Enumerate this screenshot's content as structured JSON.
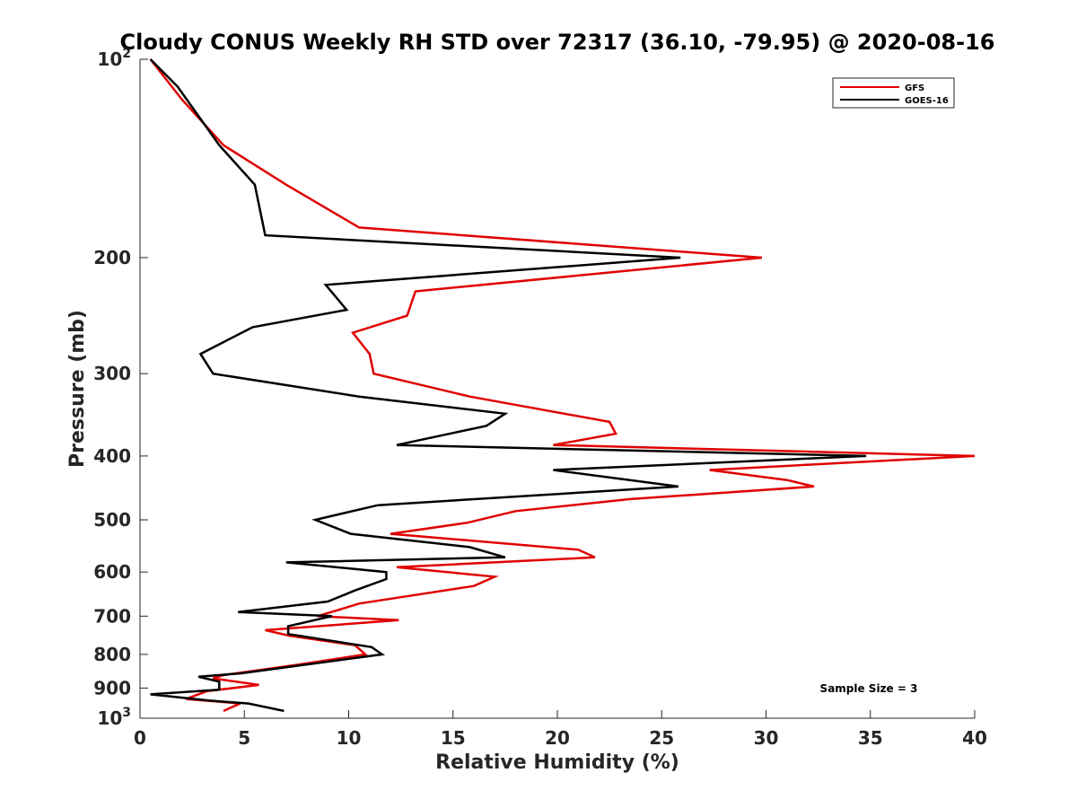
{
  "chart_data": {
    "type": "line",
    "title": "Cloudy CONUS Weekly RH STD over 72317 (36.10, -79.95) @ 2020-08-16",
    "xlabel": "Relative Humidity (%)",
    "ylabel": "Pressure (mb)",
    "xlim": [
      0,
      40
    ],
    "ylim": [
      100,
      1000
    ],
    "yscale": "log",
    "y_reversed": true,
    "grid": false,
    "legend_position": "top-right",
    "x_ticks": [
      0,
      5,
      10,
      15,
      20,
      25,
      30,
      35,
      40
    ],
    "x_tick_labels": [
      "0",
      "5",
      "10",
      "15",
      "20",
      "25",
      "30",
      "35",
      "40"
    ],
    "y_ticks": [
      200,
      300,
      400,
      500,
      600,
      700,
      800,
      900
    ],
    "y_tick_labels": [
      "200",
      "300",
      "400",
      "500",
      "600",
      "700",
      "800",
      "900"
    ],
    "y_log_ticks": [
      {
        "value": 100,
        "base": "10",
        "exp": "2"
      },
      {
        "value": 1000,
        "base": "10",
        "exp": "3"
      }
    ],
    "annotation": "Sample Size = 3",
    "series": [
      {
        "name": "GFS",
        "color": "#e00000",
        "points": [
          [
            0.5,
            100
          ],
          [
            2,
            115
          ],
          [
            4,
            135
          ],
          [
            7,
            155
          ],
          [
            10.5,
            180
          ],
          [
            29.8,
            200
          ],
          [
            13.2,
            225
          ],
          [
            12.8,
            245
          ],
          [
            10.2,
            260
          ],
          [
            11,
            280
          ],
          [
            11.2,
            300
          ],
          [
            15.8,
            325
          ],
          [
            22.5,
            355
          ],
          [
            22.8,
            370
          ],
          [
            19.8,
            385
          ],
          [
            40,
            400
          ],
          [
            27.3,
            420
          ],
          [
            31,
            435
          ],
          [
            32.3,
            445
          ],
          [
            23.5,
            465
          ],
          [
            18,
            485
          ],
          [
            15.7,
            505
          ],
          [
            12,
            525
          ],
          [
            21,
            555
          ],
          [
            21.8,
            570
          ],
          [
            12.3,
            590
          ],
          [
            17,
            610
          ],
          [
            16,
            630
          ],
          [
            10.5,
            670
          ],
          [
            9.5,
            685
          ],
          [
            8.5,
            700
          ],
          [
            12.4,
            710
          ],
          [
            6,
            735
          ],
          [
            7.2,
            750
          ],
          [
            10.3,
            775
          ],
          [
            10.8,
            800
          ],
          [
            7.5,
            830
          ],
          [
            4,
            860
          ],
          [
            3.5,
            870
          ],
          [
            5.7,
            890
          ],
          [
            3.2,
            910
          ],
          [
            2.2,
            935
          ],
          [
            4.8,
            950
          ],
          [
            4,
            975
          ]
        ]
      },
      {
        "name": "GOES-16",
        "color": "#000000",
        "points": [
          [
            0.5,
            100
          ],
          [
            1.8,
            110
          ],
          [
            3.8,
            135
          ],
          [
            5.5,
            155
          ],
          [
            6,
            185
          ],
          [
            25.9,
            200
          ],
          [
            8.9,
            220
          ],
          [
            9.9,
            240
          ],
          [
            5.4,
            255
          ],
          [
            2.9,
            280
          ],
          [
            3.5,
            300
          ],
          [
            10.5,
            325
          ],
          [
            17.5,
            345
          ],
          [
            16.6,
            360
          ],
          [
            12.3,
            385
          ],
          [
            34.8,
            400
          ],
          [
            19.8,
            420
          ],
          [
            25.8,
            445
          ],
          [
            11.4,
            475
          ],
          [
            8.4,
            500
          ],
          [
            10.1,
            525
          ],
          [
            15.8,
            550
          ],
          [
            17.5,
            570
          ],
          [
            7,
            580
          ],
          [
            11.8,
            600
          ],
          [
            11.8,
            615
          ],
          [
            10.3,
            640
          ],
          [
            9,
            665
          ],
          [
            4.7,
            690
          ],
          [
            9.2,
            700
          ],
          [
            7.1,
            725
          ],
          [
            7.1,
            745
          ],
          [
            11.1,
            780
          ],
          [
            11.6,
            800
          ],
          [
            4.8,
            855
          ],
          [
            2.8,
            865
          ],
          [
            3.8,
            880
          ],
          [
            3.8,
            905
          ],
          [
            0.5,
            920
          ],
          [
            3.3,
            940
          ],
          [
            5.2,
            950
          ],
          [
            6.9,
            975
          ]
        ]
      }
    ]
  }
}
